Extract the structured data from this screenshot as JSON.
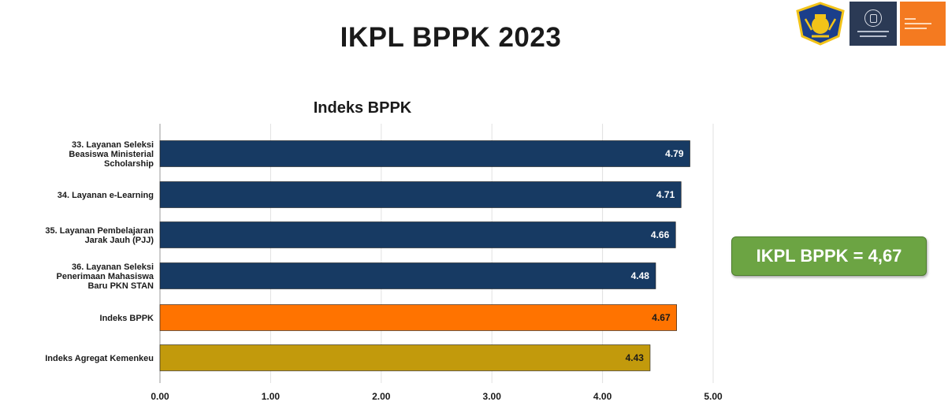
{
  "page": {
    "title": "IKPL BPPK 2023"
  },
  "logos": {
    "items": [
      {
        "name": "kemenkeu-logo-icon"
      },
      {
        "name": "universitas-indonesia-logo-icon"
      },
      {
        "name": "ui-faculty-logo-icon"
      }
    ]
  },
  "chart_data": {
    "type": "bar",
    "orientation": "horizontal",
    "title": "Indeks BPPK",
    "xlabel": "",
    "ylabel": "",
    "xlim": [
      0,
      5
    ],
    "ticks": [
      "0.00",
      "1.00",
      "2.00",
      "3.00",
      "4.00",
      "5.00"
    ],
    "tick_values": [
      0,
      1,
      2,
      3,
      4,
      5
    ],
    "grid": true,
    "legend": "none",
    "categories": [
      [
        "33. Layanan Seleksi",
        "Beasiswa Ministerial",
        "Scholarship"
      ],
      [
        "34. Layanan e-Learning"
      ],
      [
        "35. Layanan Pembelajaran",
        "Jarak Jauh (PJJ)"
      ],
      [
        "36. Layanan Seleksi",
        "Penerimaan Mahasiswa",
        "Baru PKN STAN"
      ],
      [
        "Indeks BPPK"
      ],
      [
        "Indeks Agregat Kemenkeu"
      ]
    ],
    "values": [
      4.79,
      4.71,
      4.66,
      4.48,
      4.67,
      4.43
    ],
    "value_labels": [
      "4.79",
      "4.71",
      "4.66",
      "4.48",
      "4.67",
      "4.43"
    ],
    "colors": [
      "#173a63",
      "#173a63",
      "#173a63",
      "#173a63",
      "#ff7300",
      "#c29a0c"
    ],
    "label_colors": [
      "#ffffff",
      "#ffffff",
      "#ffffff",
      "#ffffff",
      "#1a1a1a",
      "#1a1a1a"
    ]
  },
  "summary": {
    "text": "IKPL BPPK = 4,67",
    "color": "#6ca443"
  }
}
